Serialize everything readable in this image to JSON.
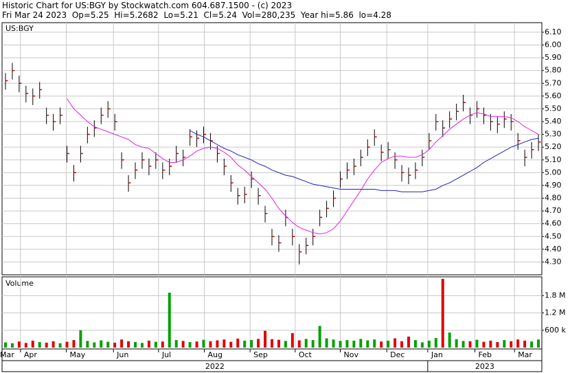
{
  "chart_data": {
    "type": "ohlc",
    "title": "Historic Chart for US:BGY by Stockwatch.com 604.687.1500 - (c) 2023",
    "subtitle": "Fri Mar 24 2023  Op=5.25  Hi=5.2682  Lo=5.21  Cl=5.24  Vol=280,235  Year hi=5.86  lo=4.28",
    "symbol": "US:BGY",
    "volume_label": "Volume",
    "bar_color": "#000000",
    "close_color": "#cc0000",
    "up_color": "#00a000",
    "down_color": "#e00000",
    "grid": true,
    "high": [
      5.78,
      5.86,
      5.76,
      5.68,
      5.66,
      5.71,
      5.51,
      5.46,
      5.51,
      5.21,
      5.06,
      5.21,
      5.36,
      5.41,
      5.51,
      5.56,
      5.46,
      5.16,
      4.98,
      5.08,
      5.16,
      5.11,
      5.16,
      5.08,
      5.11,
      5.21,
      5.18,
      5.34,
      5.33,
      5.36,
      5.31,
      5.21,
      5.11,
      4.98,
      4.88,
      4.89,
      5.01,
      4.88,
      4.74,
      4.56,
      4.51,
      4.71,
      4.56,
      4.44,
      4.49,
      4.56,
      4.71,
      4.78,
      4.86,
      5.01,
      5.08,
      5.11,
      5.18,
      5.26,
      5.34,
      5.22,
      5.24,
      5.16,
      5.06,
      5.04,
      5.08,
      5.18,
      5.31,
      5.46,
      5.41,
      5.48,
      5.54,
      5.61,
      5.51,
      5.56,
      5.51,
      5.46,
      5.44,
      5.48,
      5.46,
      5.31,
      5.18,
      5.24,
      5.3
    ],
    "low": [
      5.65,
      5.73,
      5.63,
      5.55,
      5.53,
      5.58,
      5.38,
      5.33,
      5.38,
      5.08,
      4.93,
      5.08,
      5.23,
      5.28,
      5.38,
      5.43,
      5.33,
      5.03,
      4.85,
      4.95,
      5.03,
      4.98,
      5.03,
      4.95,
      4.98,
      5.08,
      5.05,
      5.21,
      5.2,
      5.23,
      5.18,
      5.08,
      4.98,
      4.85,
      4.75,
      4.76,
      4.88,
      4.75,
      4.61,
      4.43,
      4.38,
      4.58,
      4.43,
      4.28,
      4.36,
      4.43,
      4.58,
      4.65,
      4.73,
      4.88,
      4.95,
      4.98,
      5.05,
      5.13,
      5.21,
      5.09,
      5.11,
      5.03,
      4.93,
      4.91,
      4.95,
      5.05,
      5.18,
      5.33,
      5.28,
      5.35,
      5.41,
      5.48,
      5.38,
      5.43,
      5.38,
      5.33,
      5.31,
      5.35,
      5.33,
      5.18,
      5.05,
      5.11,
      5.17
    ],
    "close": [
      5.72,
      5.8,
      5.7,
      5.62,
      5.6,
      5.65,
      5.45,
      5.4,
      5.45,
      5.15,
      5.0,
      5.15,
      5.3,
      5.35,
      5.45,
      5.5,
      5.4,
      5.1,
      4.92,
      5.02,
      5.1,
      5.05,
      5.1,
      5.02,
      5.05,
      5.15,
      5.12,
      5.28,
      5.27,
      5.3,
      5.25,
      5.15,
      5.05,
      4.92,
      4.82,
      4.83,
      4.95,
      4.82,
      4.68,
      4.5,
      4.45,
      4.65,
      4.5,
      4.38,
      4.43,
      4.5,
      4.65,
      4.72,
      4.8,
      4.95,
      5.02,
      5.05,
      5.12,
      5.2,
      5.28,
      5.16,
      5.18,
      5.1,
      5.0,
      4.98,
      5.02,
      5.12,
      5.25,
      5.4,
      5.35,
      5.42,
      5.48,
      5.55,
      5.45,
      5.5,
      5.45,
      5.4,
      5.38,
      5.42,
      5.4,
      5.25,
      5.12,
      5.18,
      5.24
    ],
    "series": [
      {
        "color": "#e020e0",
        "values": [
          null,
          null,
          null,
          null,
          null,
          null,
          null,
          null,
          null,
          5.58,
          5.5,
          5.45,
          5.4,
          5.36,
          5.34,
          5.32,
          5.3,
          5.28,
          5.26,
          5.22,
          5.2,
          5.19,
          5.15,
          5.11,
          5.08,
          5.08,
          5.1,
          5.13,
          5.17,
          5.19,
          5.2,
          5.19,
          5.16,
          5.12,
          5.06,
          5.02,
          4.97,
          4.92,
          4.87,
          4.8,
          4.72,
          4.66,
          4.61,
          4.57,
          4.55,
          4.53,
          4.52,
          4.53,
          4.56,
          4.62,
          4.7,
          4.78,
          4.86,
          4.95,
          5.02,
          5.08,
          5.11,
          5.13,
          5.13,
          5.12,
          5.12,
          5.14,
          5.18,
          5.24,
          5.29,
          5.34,
          5.38,
          5.42,
          5.45,
          5.47,
          5.46,
          5.44,
          5.44,
          5.44,
          5.43,
          5.4,
          5.36,
          5.33,
          5.3
        ]
      },
      {
        "color": "#2020c0",
        "values": [
          null,
          null,
          null,
          null,
          null,
          null,
          null,
          null,
          null,
          null,
          null,
          null,
          null,
          null,
          null,
          null,
          null,
          null,
          null,
          null,
          null,
          null,
          null,
          null,
          null,
          null,
          null,
          5.33,
          5.3,
          5.28,
          5.25,
          5.22,
          5.19,
          5.17,
          5.14,
          5.12,
          5.1,
          5.07,
          5.05,
          5.02,
          5.0,
          4.98,
          4.97,
          4.95,
          4.93,
          4.91,
          4.9,
          4.89,
          4.88,
          4.87,
          4.87,
          4.87,
          4.87,
          4.87,
          4.87,
          4.86,
          4.86,
          4.86,
          4.85,
          4.85,
          4.85,
          4.85,
          4.86,
          4.87,
          4.9,
          4.92,
          4.95,
          4.98,
          5.01,
          5.04,
          5.08,
          5.11,
          5.14,
          5.17,
          5.2,
          5.22,
          5.24,
          5.26,
          5.27
        ]
      }
    ],
    "volume": [
      180000,
      150000,
      210000,
      160000,
      240000,
      190000,
      170000,
      220000,
      150000,
      200000,
      260000,
      600000,
      230000,
      180000,
      250000,
      200000,
      170000,
      280000,
      220000,
      190000,
      160000,
      240000,
      200000,
      210000,
      1900000,
      260000,
      230000,
      190000,
      210000,
      270000,
      220000,
      250000,
      280000,
      200000,
      310000,
      240000,
      260000,
      300000,
      580000,
      290000,
      270000,
      230000,
      500000,
      250000,
      300000,
      260000,
      750000,
      320000,
      280000,
      230000,
      260000,
      240000,
      300000,
      250000,
      280000,
      210000,
      240000,
      320000,
      220000,
      380000,
      260000,
      180000,
      240000,
      330000,
      2380000,
      520000,
      290000,
      230000,
      220000,
      270000,
      200000,
      240000,
      190000,
      260000,
      220000,
      280000,
      240000,
      210000,
      280235
    ],
    "xlim": [
      0,
      79
    ],
    "ylim": [
      4.2,
      6.175
    ],
    "yticks": [
      {
        "value": 4.3,
        "label": "4.30"
      },
      {
        "value": 4.4,
        "label": "4.40"
      },
      {
        "value": 4.5,
        "label": "4.50"
      },
      {
        "value": 4.6,
        "label": "4.60"
      },
      {
        "value": 4.7,
        "label": "4.70"
      },
      {
        "value": 4.8,
        "label": "4.80"
      },
      {
        "value": 4.9,
        "label": "4.90"
      },
      {
        "value": 5.0,
        "label": "5.00"
      },
      {
        "value": 5.1,
        "label": "5.10"
      },
      {
        "value": 5.2,
        "label": "5.20"
      },
      {
        "value": 5.3,
        "label": "5.30"
      },
      {
        "value": 5.4,
        "label": "5.40"
      },
      {
        "value": 5.5,
        "label": "5.50"
      },
      {
        "value": 5.6,
        "label": "5.60"
      },
      {
        "value": 5.7,
        "label": "5.70"
      },
      {
        "value": 5.8,
        "label": "5.80"
      },
      {
        "value": 5.9,
        "label": "5.90"
      },
      {
        "value": 6.0,
        "label": "6.00"
      },
      {
        "value": 6.1,
        "label": "6.10"
      }
    ],
    "volume_ylim": [
      0,
      2450000
    ],
    "volume_yticks": [
      {
        "value": 600000,
        "label": "600 k"
      },
      {
        "value": 1200000,
        "label": "1.2 M"
      },
      {
        "value": 1800000,
        "label": "1.8 M"
      }
    ],
    "xticks": [
      {
        "value": -0.8,
        "label": "Mar"
      },
      {
        "value": 2.7,
        "label": "Apr"
      },
      {
        "value": 9.4,
        "label": "May"
      },
      {
        "value": 16.3,
        "label": "Jun"
      },
      {
        "value": 22.9,
        "label": "Jul"
      },
      {
        "value": 29.6,
        "label": "Aug"
      },
      {
        "value": 36.3,
        "label": "Sep"
      },
      {
        "value": 42.9,
        "label": "Oct"
      },
      {
        "value": 49.5,
        "label": "Nov"
      },
      {
        "value": 56.3,
        "label": "Dec"
      },
      {
        "value": 62.3,
        "label": "Jan"
      },
      {
        "value": 69.2,
        "label": "Feb"
      },
      {
        "value": 75.0,
        "label": "Mar"
      }
    ],
    "year_ticks": [
      {
        "value": -0.8,
        "label": "2022"
      },
      {
        "value": 62.3,
        "label": "2023"
      }
    ]
  }
}
